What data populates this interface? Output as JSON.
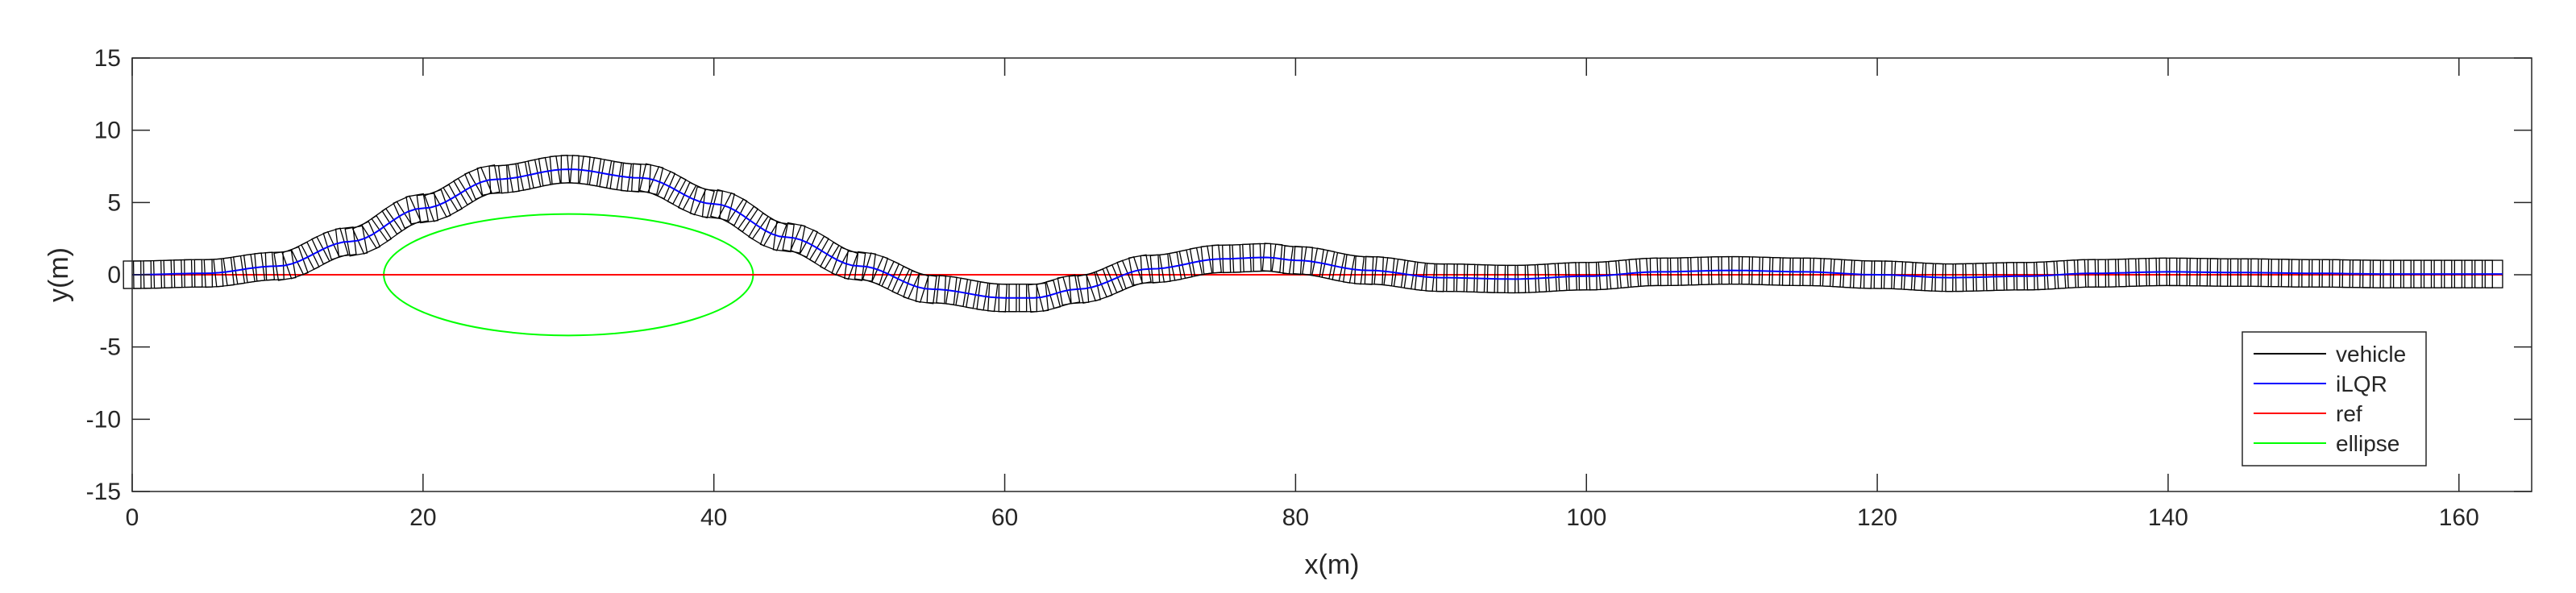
{
  "chart_data": {
    "type": "line",
    "xlabel": "x(m)",
    "ylabel": "y(m)",
    "xlim": [
      0,
      165
    ],
    "ylim": [
      -15,
      15
    ],
    "xticks": [
      0,
      20,
      40,
      60,
      80,
      100,
      120,
      140,
      160
    ],
    "yticks": [
      -15,
      -10,
      -5,
      0,
      5,
      10,
      15
    ],
    "grid": false,
    "legend_position": "bottom-right",
    "vehicle_box": {
      "length": 1.2,
      "width": 1.9,
      "heading": "tangent to path"
    },
    "series": [
      {
        "name": "vehicle",
        "color": "#000000",
        "style": "rectangles along path",
        "x": [
          0,
          5,
          10,
          15,
          20,
          25,
          30,
          35,
          40,
          45,
          50,
          55,
          60,
          62,
          65,
          70,
          75,
          78,
          80,
          85,
          90,
          95,
          100,
          105,
          110,
          115,
          120,
          125,
          130,
          135,
          140,
          145,
          150,
          155,
          160,
          163
        ],
        "y": [
          0,
          0.1,
          0.6,
          2.3,
          4.6,
          6.6,
          7.3,
          6.7,
          4.9,
          2.6,
          0.6,
          -1.0,
          -1.6,
          -1.6,
          -1.0,
          0.4,
          1.1,
          1.2,
          1.0,
          0.3,
          -0.2,
          -0.3,
          -0.1,
          0.2,
          0.3,
          0.2,
          0.0,
          -0.2,
          -0.1,
          0.1,
          0.2,
          0.15,
          0.1,
          0.05,
          0.05,
          0.05
        ]
      },
      {
        "name": "iLQR",
        "color": "#0000ff",
        "style": "line",
        "x": [
          0,
          5,
          10,
          15,
          20,
          25,
          30,
          35,
          40,
          45,
          50,
          55,
          60,
          62,
          65,
          70,
          75,
          78,
          80,
          85,
          90,
          95,
          100,
          105,
          110,
          115,
          120,
          125,
          130,
          135,
          140,
          145,
          150,
          155,
          160,
          163
        ],
        "y": [
          0,
          0.1,
          0.6,
          2.3,
          4.6,
          6.6,
          7.3,
          6.7,
          4.9,
          2.6,
          0.6,
          -1.0,
          -1.6,
          -1.6,
          -1.0,
          0.4,
          1.1,
          1.2,
          1.0,
          0.3,
          -0.2,
          -0.3,
          -0.1,
          0.2,
          0.3,
          0.2,
          0.0,
          -0.2,
          -0.1,
          0.1,
          0.2,
          0.15,
          0.1,
          0.05,
          0.05,
          0.05
        ]
      },
      {
        "name": "ref",
        "color": "#ff0000",
        "style": "line",
        "x": [
          0,
          163
        ],
        "y": [
          0,
          0
        ]
      },
      {
        "name": "ellipse",
        "color": "#00ff00",
        "style": "ellipse",
        "center": [
          30,
          0
        ],
        "semi_axis_x": 12.7,
        "semi_axis_y": 4.2
      }
    ]
  }
}
